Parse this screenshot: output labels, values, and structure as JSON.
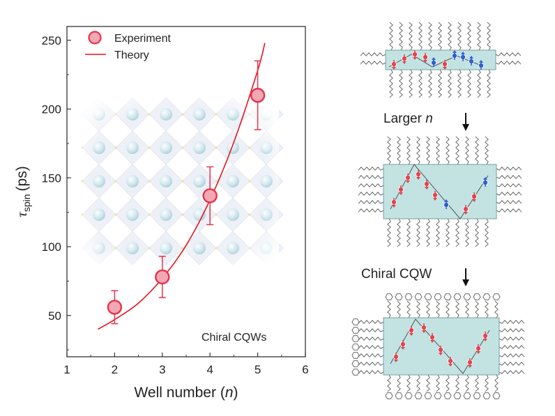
{
  "chart_data": {
    "type": "scatter",
    "xlabel": "Well number",
    "xlabel_var": "n",
    "ylabel": "τ",
    "ylabel_sub": "spin",
    "ylabel_unit": "(ps)",
    "xlim": [
      1,
      6
    ],
    "ylim": [
      20,
      260
    ],
    "xticks": [
      1,
      2,
      3,
      4,
      5,
      6
    ],
    "yticks": [
      50,
      100,
      150,
      200,
      250
    ],
    "grid": false,
    "legend_position": "top-left",
    "annotation": "Chiral CQWs",
    "series": [
      {
        "name": "Experiment",
        "kind": "points",
        "color": "#e8324a",
        "fill": "#f0a8b4",
        "x": [
          2,
          3,
          4,
          5
        ],
        "y": [
          56,
          78,
          137,
          210
        ],
        "error": [
          12,
          15,
          21,
          25
        ]
      },
      {
        "name": "Theory",
        "kind": "line",
        "color": "#e3141f",
        "x": [
          1.65,
          2.0,
          2.5,
          3.0,
          3.5,
          4.0,
          4.5,
          5.0,
          5.15
        ],
        "y": [
          40,
          47,
          59,
          77,
          101,
          134,
          176,
          228,
          248
        ]
      }
    ]
  },
  "schematic": {
    "label_larger": "Larger",
    "label_larger_var": "n",
    "label_chiral": "Chiral CQW",
    "colors": {
      "box_fill": "#c3e3e3",
      "red_spin": "#e0454f",
      "blue_spin": "#2f5fd0",
      "ligand": "#6a6a6a"
    }
  }
}
